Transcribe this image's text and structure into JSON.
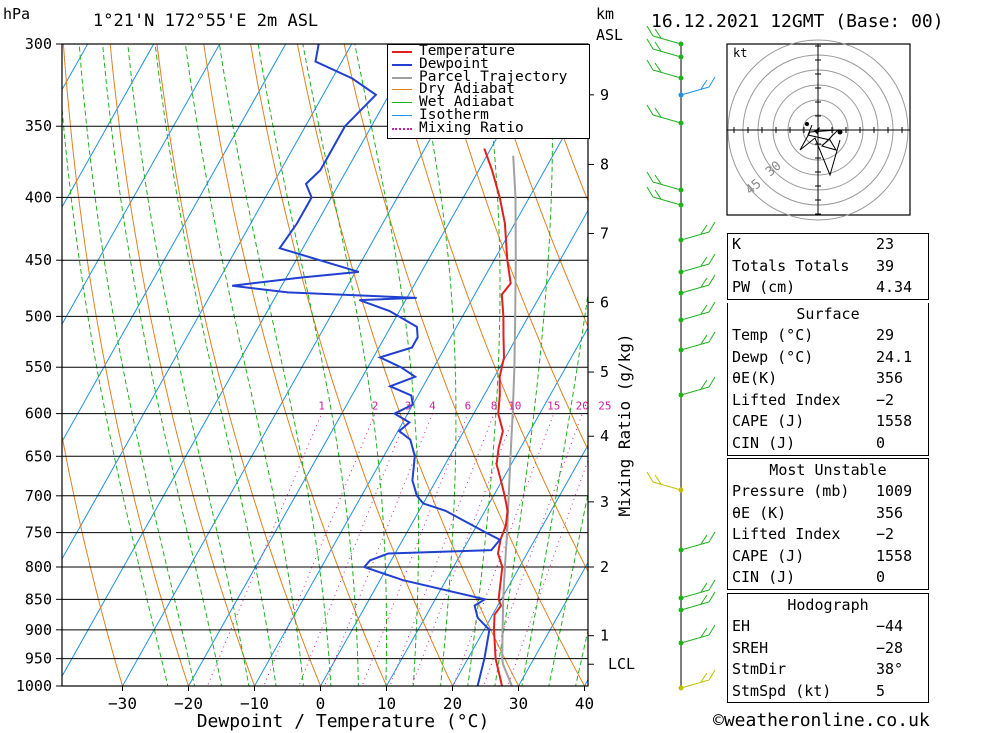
{
  "header": {
    "pressure_unit": "hPa",
    "location": "1°21'N  172°55'E  2m  ASL",
    "km_unit": "km",
    "asl": "ASL",
    "datetime": "16.12.2021  12GMT  (Base: 00)"
  },
  "legend": {
    "items": [
      {
        "label": "Temperature",
        "color": "#e02020",
        "style": "solid"
      },
      {
        "label": "Dewpoint",
        "color": "#2040d0",
        "style": "solid"
      },
      {
        "label": "Parcel Trajectory",
        "color": "#a0a0a0",
        "style": "solid"
      },
      {
        "label": "Dry Adiabat",
        "color": "#e08020",
        "style": "solid"
      },
      {
        "label": "Wet Adiabat",
        "color": "#20b020",
        "style": "solid"
      },
      {
        "label": "Isotherm",
        "color": "#2090e0",
        "style": "solid"
      },
      {
        "label": "Mixing Ratio",
        "color": "#d020a0",
        "style": "dotted"
      }
    ]
  },
  "chart_data": {
    "type": "line",
    "chart_kind": "skew-T log-p diagram",
    "xlabel": "Dewpoint / Temperature (°C)",
    "ylabel": "hPa",
    "right_axis_label": "Mixing Ratio (g/kg)",
    "xlim": [
      -40,
      40
    ],
    "ylim": [
      1000,
      300
    ],
    "y_scale": "log",
    "x_ticks": [
      -30,
      -20,
      -10,
      0,
      10,
      20,
      30,
      40
    ],
    "x_tick_labels": [
      "−30",
      "−20",
      "−10",
      "0",
      "10",
      "20",
      "30",
      "40"
    ],
    "pressure_levels": [
      300,
      350,
      400,
      450,
      500,
      550,
      600,
      650,
      700,
      750,
      800,
      850,
      900,
      950,
      1000
    ],
    "km_ticks": [
      {
        "km": "1",
        "p": 910
      },
      {
        "km": "2",
        "p": 800
      },
      {
        "km": "3",
        "p": 708
      },
      {
        "km": "4",
        "p": 626
      },
      {
        "km": "5",
        "p": 555
      },
      {
        "km": "6",
        "p": 487
      },
      {
        "km": "7",
        "p": 428
      },
      {
        "km": "8",
        "p": 376
      },
      {
        "km": "9",
        "p": 330
      }
    ],
    "lcl": {
      "label": "LCL",
      "p": 960
    },
    "mixing_ratio_labels": [
      "1",
      "2",
      "3",
      "4",
      "6",
      "8",
      "10",
      "15",
      "20",
      "25"
    ],
    "mixing_ratio_values": [
      1,
      2,
      3,
      4,
      6,
      8,
      10,
      15,
      20,
      25
    ],
    "series": [
      {
        "name": "Temperature",
        "points": [
          [
            1000,
            27.5
          ],
          [
            950,
            24.2
          ],
          [
            900,
            21.5
          ],
          [
            875,
            20.3
          ],
          [
            860,
            20.5
          ],
          [
            850,
            19.6
          ],
          [
            800,
            17.4
          ],
          [
            780,
            15.6
          ],
          [
            760,
            14.8
          ],
          [
            740,
            14.4
          ],
          [
            720,
            13.4
          ],
          [
            700,
            11.7
          ],
          [
            680,
            9.8
          ],
          [
            660,
            7.8
          ],
          [
            640,
            6.7
          ],
          [
            620,
            5.9
          ],
          [
            600,
            3.7
          ],
          [
            580,
            2.4
          ],
          [
            560,
            0.8
          ],
          [
            540,
            -0.2
          ],
          [
            520,
            -2.0
          ],
          [
            500,
            -3.8
          ],
          [
            480,
            -5.9
          ],
          [
            470,
            -5.5
          ],
          [
            450,
            -8.0
          ],
          [
            420,
            -11.5
          ],
          [
            400,
            -14.5
          ],
          [
            380,
            -18.0
          ],
          [
            365,
            -21.0
          ]
        ]
      },
      {
        "name": "Dewpoint",
        "points": [
          [
            1000,
            23.8
          ],
          [
            950,
            22.5
          ],
          [
            900,
            20.8
          ],
          [
            880,
            18.0
          ],
          [
            860,
            16.5
          ],
          [
            850,
            17.5
          ],
          [
            820,
            3.5
          ],
          [
            800,
            -3.5
          ],
          [
            790,
            -3.2
          ],
          [
            780,
            -1.0
          ],
          [
            775,
            14.3
          ],
          [
            760,
            14.7
          ],
          [
            750,
            12.0
          ],
          [
            720,
            4.0
          ],
          [
            710,
            0.0
          ],
          [
            700,
            -1.6
          ],
          [
            680,
            -3.6
          ],
          [
            650,
            -5.3
          ],
          [
            630,
            -7.4
          ],
          [
            620,
            -9.8
          ],
          [
            610,
            -9.0
          ],
          [
            600,
            -12.0
          ],
          [
            590,
            -10.0
          ],
          [
            580,
            -11.0
          ],
          [
            570,
            -15.0
          ],
          [
            560,
            -12.0
          ],
          [
            550,
            -15.0
          ],
          [
            540,
            -19.0
          ],
          [
            530,
            -15.0
          ],
          [
            520,
            -15.0
          ],
          [
            510,
            -16.0
          ],
          [
            495,
            -21.5
          ],
          [
            485,
            -27.0
          ],
          [
            483,
            -18.5
          ],
          [
            478,
            -38.5
          ],
          [
            472,
            -47.5
          ],
          [
            465,
            -38.0
          ],
          [
            460,
            -29.5
          ],
          [
            440,
            -43.5
          ],
          [
            420,
            -43.0
          ],
          [
            400,
            -43.0
          ],
          [
            390,
            -45.0
          ],
          [
            380,
            -44.0
          ],
          [
            360,
            -44.0
          ],
          [
            350,
            -44.0
          ],
          [
            340,
            -43.0
          ],
          [
            330,
            -42.0
          ],
          [
            320,
            -47.0
          ],
          [
            310,
            -54.0
          ],
          [
            300,
            -55.0
          ]
        ]
      },
      {
        "name": "Parcel Trajectory",
        "points": [
          [
            1000,
            29.0
          ],
          [
            960,
            25.8
          ],
          [
            950,
            25.2
          ],
          [
            900,
            22.8
          ],
          [
            850,
            20.3
          ],
          [
            800,
            17.8
          ],
          [
            750,
            15.2
          ],
          [
            700,
            12.3
          ],
          [
            650,
            9.2
          ],
          [
            600,
            5.9
          ],
          [
            550,
            2.2
          ],
          [
            500,
            -2.0
          ],
          [
            450,
            -6.7
          ],
          [
            400,
            -12.1
          ],
          [
            370,
            -16.0
          ]
        ]
      }
    ]
  },
  "indices": {
    "k_label": "K",
    "k_value": "23",
    "tt_label": "Totals Totals",
    "tt_value": "39",
    "pw_label": "PW (cm)",
    "pw_value": "4.34"
  },
  "surface": {
    "title": "Surface",
    "rows": [
      {
        "label": "Temp (°C)",
        "value": "29"
      },
      {
        "label": "Dewp (°C)",
        "value": "24.1"
      },
      {
        "label": "θE(K)",
        "value": "356"
      },
      {
        "label": "Lifted Index",
        "value": "−2"
      },
      {
        "label": "CAPE (J)",
        "value": "1558"
      },
      {
        "label": "CIN (J)",
        "value": "0"
      }
    ]
  },
  "most_unstable": {
    "title": "Most Unstable",
    "rows": [
      {
        "label": "Pressure (mb)",
        "value": "1009"
      },
      {
        "label": "θE (K)",
        "value": "356"
      },
      {
        "label": "Lifted Index",
        "value": "−2"
      },
      {
        "label": "CAPE (J)",
        "value": "1558"
      },
      {
        "label": "CIN (J)",
        "value": "0"
      }
    ]
  },
  "hodograph_table": {
    "title": "Hodograph",
    "rows": [
      {
        "label": "EH",
        "value": "−44"
      },
      {
        "label": "SREH",
        "value": "−28"
      },
      {
        "label": "StmDir",
        "value": "38°"
      },
      {
        "label": "StmSpd (kt)",
        "value": "5"
      }
    ]
  },
  "hodograph": {
    "unit_label": "kt",
    "ring_labels": [
      "30",
      "45"
    ]
  },
  "credit": "©weatheronline.co.uk"
}
